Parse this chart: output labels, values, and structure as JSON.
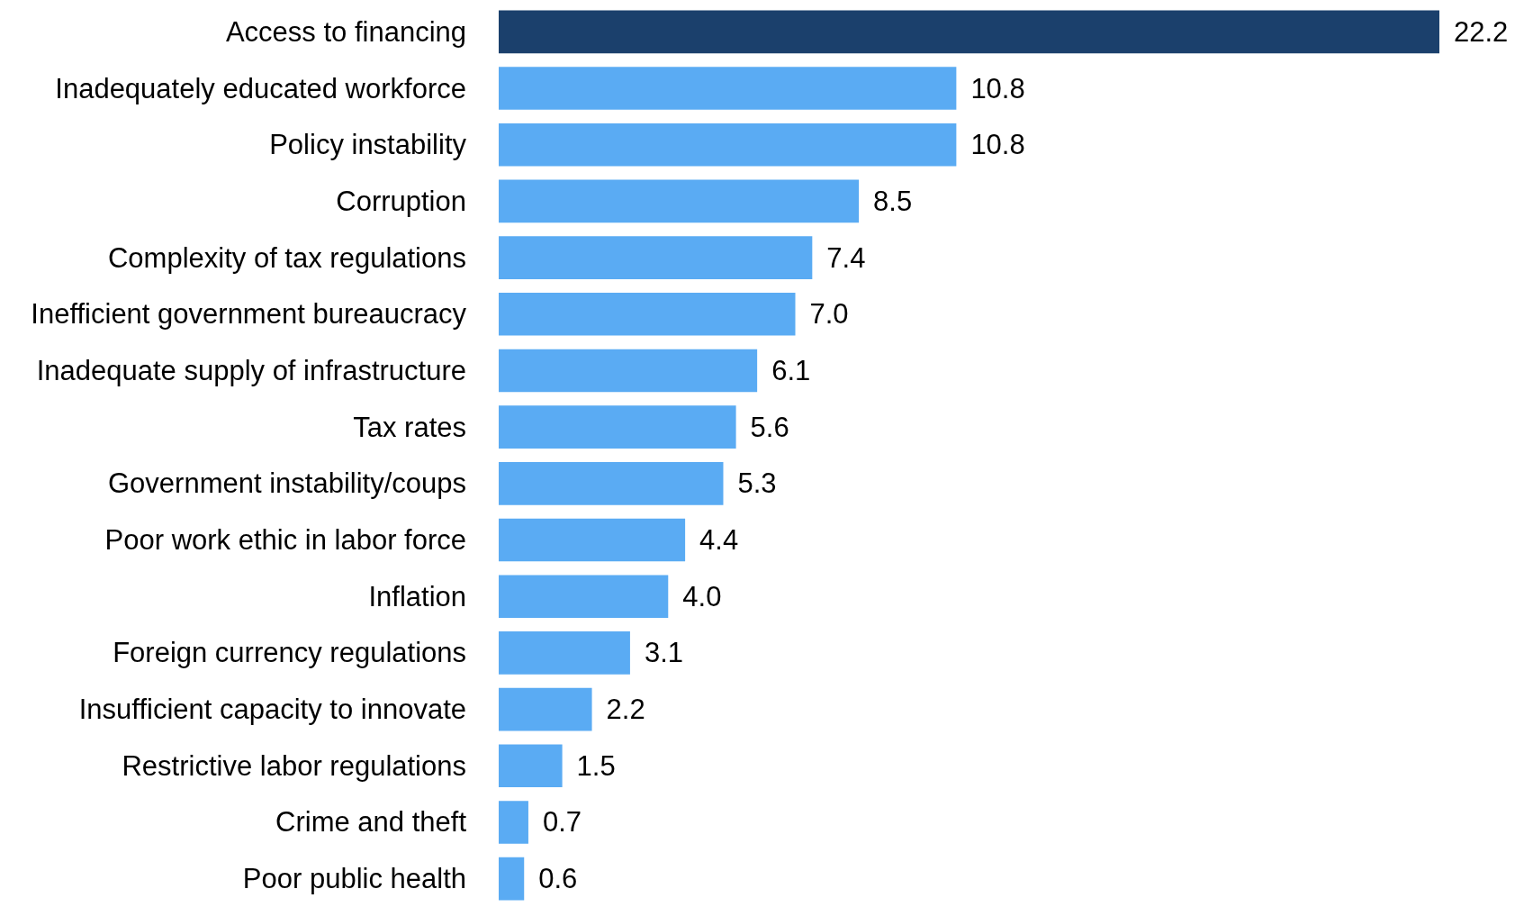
{
  "chart_data": {
    "type": "bar",
    "orientation": "horizontal",
    "categories": [
      "Access to financing",
      "Inadequately educated workforce",
      "Policy instability",
      "Corruption",
      "Complexity of tax regulations",
      "Inefficient government bureaucracy",
      "Inadequate supply of infrastructure",
      "Tax rates",
      "Government instability/coups",
      "Poor work ethic in labor force",
      "Inflation",
      "Foreign currency regulations",
      "Insufficient capacity to innovate",
      "Restrictive labor regulations",
      "Crime and theft",
      "Poor public health"
    ],
    "values": [
      22.2,
      10.8,
      10.8,
      8.5,
      7.4,
      7.0,
      6.1,
      5.6,
      5.3,
      4.4,
      4.0,
      3.1,
      2.2,
      1.5,
      0.7,
      0.6
    ],
    "value_labels": [
      "22.2",
      "10.8",
      "10.8",
      "8.5",
      "7.4",
      "7.0",
      "6.1",
      "5.6",
      "5.3",
      "4.4",
      "4.0",
      "3.1",
      "2.2",
      "1.5",
      "0.7",
      "0.6"
    ],
    "colors": [
      "#1b406c",
      "#5aabf3",
      "#5aabf3",
      "#5aabf3",
      "#5aabf3",
      "#5aabf3",
      "#5aabf3",
      "#5aabf3",
      "#5aabf3",
      "#5aabf3",
      "#5aabf3",
      "#5aabf3",
      "#5aabf3",
      "#5aabf3",
      "#5aabf3",
      "#5aabf3"
    ],
    "tick_labels": "y",
    "grid": false
  }
}
